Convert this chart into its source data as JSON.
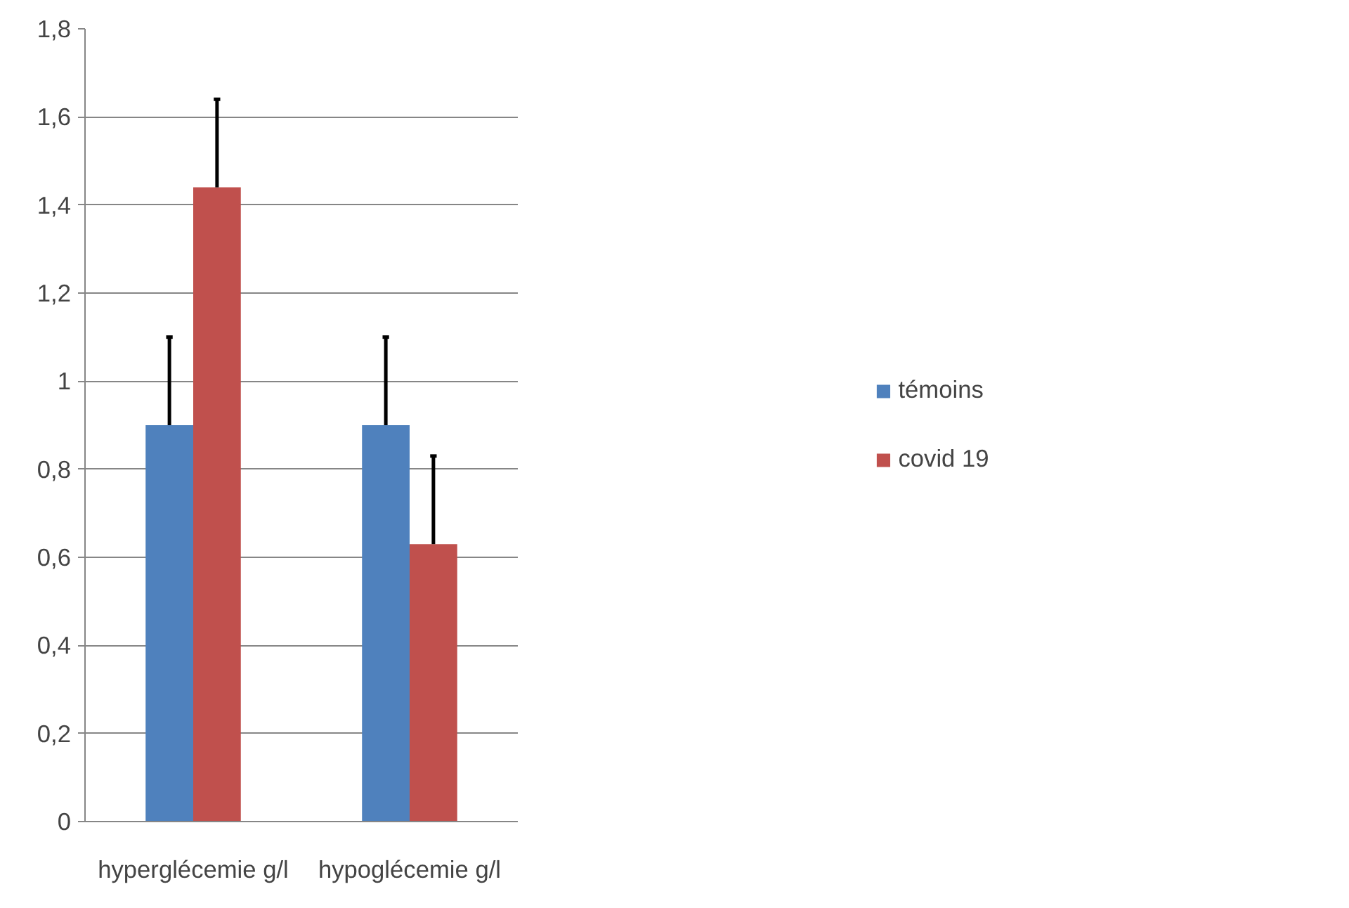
{
  "chart_data": {
    "type": "bar",
    "categories": [
      "hyperglécemie g/l",
      "hypoglécemie g/l"
    ],
    "series": [
      {
        "name": "témoins",
        "color": "#4f81bd",
        "values": [
          0.9,
          0.9
        ],
        "errors": [
          [
            0.9,
            1.1
          ],
          [
            0.9,
            1.1
          ]
        ]
      },
      {
        "name": "covid 19",
        "color": "#c0504d",
        "values": [
          1.44,
          0.63
        ],
        "errors": [
          [
            1.44,
            1.64
          ],
          [
            0.63,
            0.83
          ]
        ]
      }
    ],
    "ylim": [
      0,
      1.8
    ],
    "yticks": [
      {
        "value": 0,
        "label": "0"
      },
      {
        "value": 0.2,
        "label": "0,2"
      },
      {
        "value": 0.4,
        "label": "0,4"
      },
      {
        "value": 0.6,
        "label": "0,6"
      },
      {
        "value": 0.8,
        "label": "0,8"
      },
      {
        "value": 1,
        "label": "1"
      },
      {
        "value": 1.2,
        "label": "1,2"
      },
      {
        "value": 1.4,
        "label": "1,4"
      },
      {
        "value": 1.6,
        "label": "1,6"
      },
      {
        "value": 1.8,
        "label": "1,8"
      }
    ],
    "grid": "y",
    "legend": "right"
  }
}
